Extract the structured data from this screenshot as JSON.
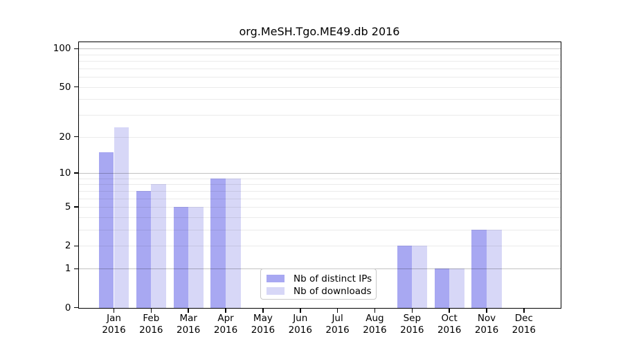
{
  "chart_data": {
    "type": "bar",
    "title": "org.MeSH.Tgo.ME49.db 2016",
    "xlabel": "",
    "ylabel": "",
    "categories": [
      "Jan\n2016",
      "Feb\n2016",
      "Mar\n2016",
      "Apr\n2016",
      "May\n2016",
      "Jun\n2016",
      "Jul\n2016",
      "Aug\n2016",
      "Sep\n2016",
      "Oct\n2016",
      "Nov\n2016",
      "Dec\n2016"
    ],
    "series": [
      {
        "name": "Nb of distinct IPs",
        "slug": "distinct-ips",
        "color": "#a8a8f2",
        "values": [
          15,
          7,
          5,
          9,
          0,
          0,
          0,
          0,
          2,
          1,
          3,
          0
        ]
      },
      {
        "name": "Nb of downloads",
        "slug": "downloads",
        "color": "#d7d7f7",
        "values": [
          24,
          8,
          5,
          9,
          0,
          0,
          0,
          0,
          2,
          1,
          3,
          0
        ]
      }
    ],
    "y_scale": "log10(value+1)",
    "y_top_value": 113,
    "y_tick_values": [
      0,
      1,
      2,
      5,
      10,
      20,
      50,
      100
    ],
    "y_tick_labels": [
      "0",
      "1",
      "2",
      "5",
      "10",
      "20",
      "50",
      "100"
    ],
    "major_gridline_values": [
      1,
      10,
      100
    ],
    "minor_gridline_values": [
      2,
      3,
      4,
      5,
      6,
      7,
      8,
      9,
      20,
      30,
      40,
      50,
      60,
      70,
      80,
      90
    ],
    "grid": true,
    "legend_position": "bottom-center"
  },
  "legend": {
    "items": [
      {
        "label": "Nb of distinct IPs"
      },
      {
        "label": "Nb of downloads"
      }
    ]
  },
  "colors": {
    "axis": "#000000",
    "text": "#000000",
    "background": "#ffffff",
    "major_grid": "rgba(0,0,0,0.24)",
    "minor_grid": "rgba(0,0,0,0.08)",
    "legend_border": "#c8c8c8"
  },
  "layout_values": {
    "months_shown": "12",
    "year": "2016"
  }
}
